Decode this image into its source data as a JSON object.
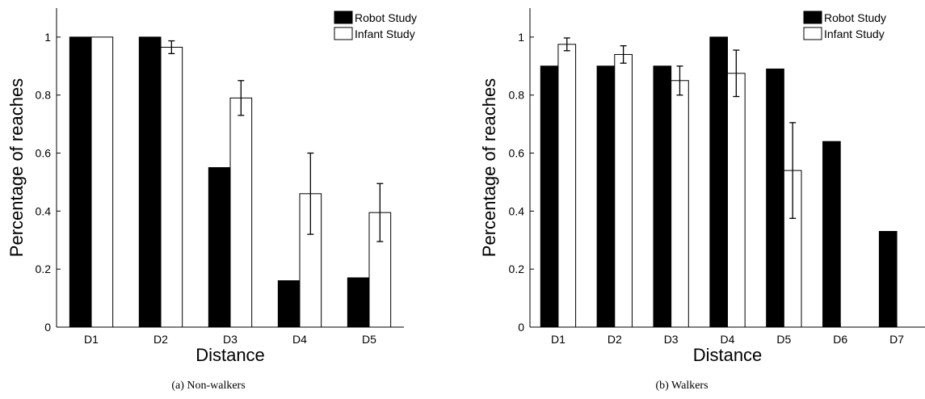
{
  "colors": {
    "robot": "#000000",
    "infant": "#ffffff",
    "stroke": "#000000"
  },
  "chart_data": [
    {
      "type": "bar",
      "caption": "(a) Non-walkers",
      "xlabel": "Distance",
      "ylabel": "Percentage of reaches",
      "ylim": [
        0,
        1.1
      ],
      "yticks": [
        0,
        0.2,
        0.4,
        0.6,
        0.8,
        1
      ],
      "ytick_labels": [
        "0",
        "0.2",
        "0.4",
        "0.6",
        "0.8",
        "1"
      ],
      "categories": [
        "D1",
        "D2",
        "D3",
        "D4",
        "D5"
      ],
      "legend": "top-right",
      "series": [
        {
          "name": "Robot Study",
          "color": "#000000",
          "values": [
            1.0,
            1.0,
            0.55,
            0.16,
            0.17
          ]
        },
        {
          "name": "Infant Study",
          "color": "#ffffff",
          "values": [
            1.0,
            0.965,
            0.79,
            0.46,
            0.395
          ],
          "error": [
            0,
            0.022,
            0.06,
            0.14,
            0.1
          ]
        }
      ]
    },
    {
      "type": "bar",
      "caption": "(b) Walkers",
      "xlabel": "Distance",
      "ylabel": "Percentage of reaches",
      "ylim": [
        0,
        1.1
      ],
      "yticks": [
        0,
        0.2,
        0.4,
        0.6,
        0.8,
        1
      ],
      "ytick_labels": [
        "0",
        "0.2",
        "0.4",
        "0.6",
        "0.8",
        "1"
      ],
      "categories": [
        "D1",
        "D2",
        "D3",
        "D4",
        "D5",
        "D6",
        "D7"
      ],
      "legend": "top-right",
      "series": [
        {
          "name": "Robot Study",
          "color": "#000000",
          "values": [
            0.9,
            0.9,
            0.9,
            1.0,
            0.89,
            0.64,
            0.33
          ]
        },
        {
          "name": "Infant Study",
          "color": "#ffffff",
          "values": [
            0.975,
            0.94,
            0.85,
            0.875,
            0.54,
            null,
            null
          ],
          "error": [
            0.022,
            0.03,
            0.05,
            0.08,
            0.165,
            null,
            null
          ]
        }
      ]
    }
  ]
}
